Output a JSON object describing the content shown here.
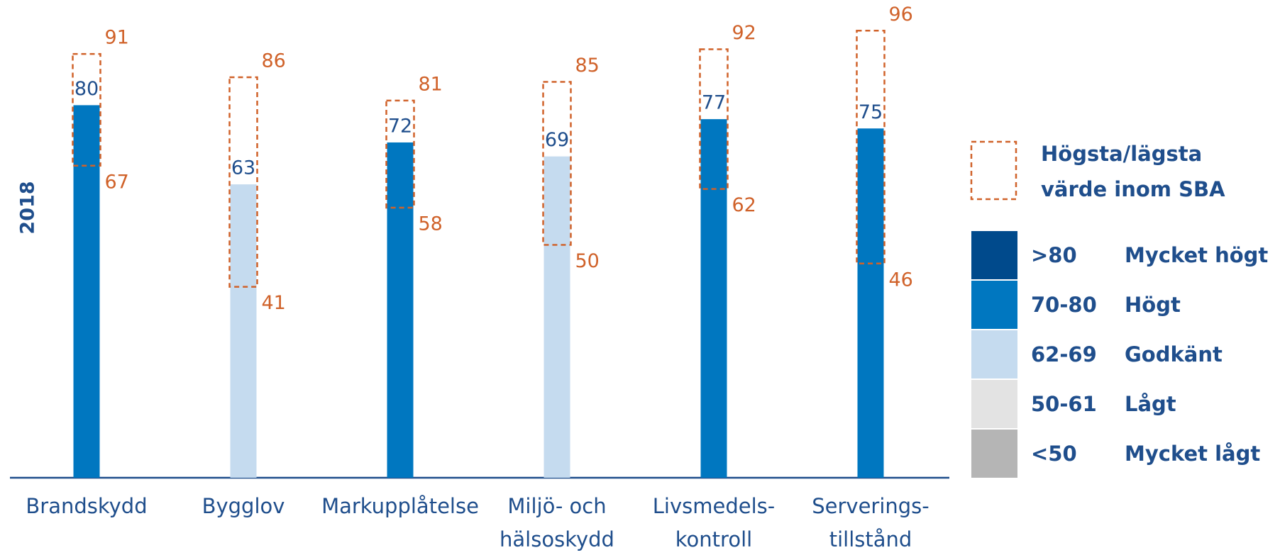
{
  "chart_data": {
    "type": "bar",
    "y_label": "2018",
    "categories": [
      "Brandskydd",
      "Bygglov",
      "Markupplåtelse",
      "Miljö- och\nhälsoskydd",
      "Livsmedels-\nkontroll",
      "Serverings-\ntillstånd"
    ],
    "values": [
      80,
      63,
      72,
      69,
      77,
      75
    ],
    "colors": [
      "#0077c0",
      "#c5dbef",
      "#0077c0",
      "#c5dbef",
      "#0077c0",
      "#0077c0"
    ],
    "max": [
      91,
      86,
      81,
      85,
      92,
      96
    ],
    "min": [
      67,
      41,
      58,
      50,
      62,
      46
    ],
    "range_color": "#d0622a",
    "ylim": [
      0,
      100
    ],
    "range_legend": "Högsta/lägsta\nvärde inom SBA",
    "legend": [
      {
        "range": ">80",
        "label": "Mycket högt",
        "color": "#004a8c"
      },
      {
        "range": "70-80",
        "label": "Högt",
        "color": "#0077c0"
      },
      {
        "range": "62-69",
        "label": "Godkänt",
        "color": "#c5dbef"
      },
      {
        "range": "50-61",
        "label": "Lågt",
        "color": "#e3e3e3"
      },
      {
        "range": "<50",
        "label": "Mycket lågt",
        "color": "#b5b5b5"
      }
    ]
  }
}
